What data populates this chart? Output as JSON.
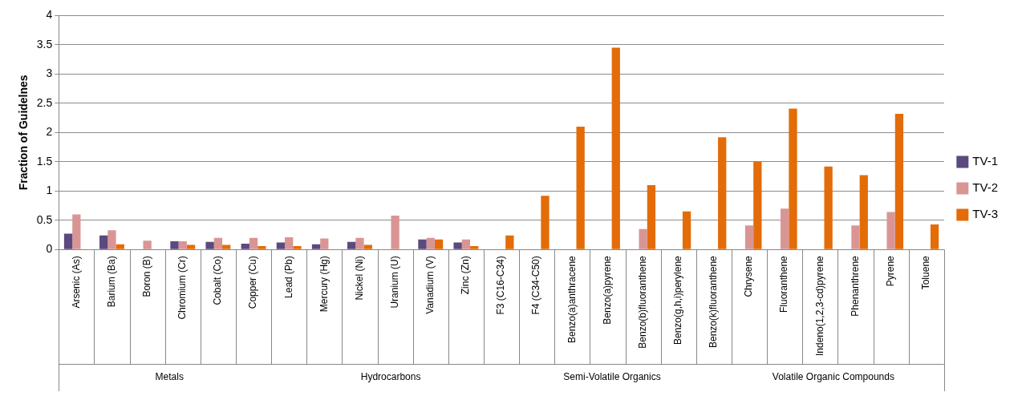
{
  "chart_data": {
    "type": "bar",
    "ylabel": "Fraction of Guidelnes",
    "categories": [
      "Arsenic (As)",
      "Barium (Ba)",
      "Boron (B)",
      "Chromium (Cr)",
      "Cobalt (Co)",
      "Copper (Cu)",
      "Lead (Pb)",
      "Mercury (Hg)",
      "Nickel (Ni)",
      "Uranium (U)",
      "Vanadium (V)",
      "Zinc (Zn)",
      "F3 (C16-C34)",
      "F4 (C34-C50)",
      "Benzo(a)anthracene",
      "Benzo(a)pyrene",
      "Benzo(b)fluoranthene",
      "Benzo(g,h,i)perylene",
      "Benzo(k)fluoranthene",
      "Chrysene",
      "Fluoranthene",
      "Indeno(1,2,3-cd)pyrene",
      "Phenanthrene",
      "Pyrene",
      "Toluene"
    ],
    "series": [
      {
        "name": "TV-1",
        "color": "#5b4a7e",
        "values": [
          0.27,
          0.24,
          null,
          0.14,
          0.13,
          0.1,
          0.12,
          0.09,
          0.13,
          null,
          0.17,
          0.12,
          null,
          null,
          null,
          null,
          null,
          null,
          null,
          null,
          null,
          null,
          null,
          null,
          null
        ]
      },
      {
        "name": "TV-2",
        "color": "#d99594",
        "values": [
          0.6,
          0.33,
          0.15,
          0.14,
          0.2,
          0.2,
          0.21,
          0.19,
          0.2,
          0.58,
          0.2,
          0.17,
          null,
          null,
          null,
          null,
          0.35,
          null,
          null,
          0.41,
          0.7,
          null,
          0.41,
          0.64,
          null
        ]
      },
      {
        "name": "TV-3",
        "color": "#e36c09",
        "values": [
          null,
          0.09,
          null,
          0.08,
          0.08,
          0.06,
          0.06,
          null,
          0.08,
          null,
          0.17,
          0.06,
          0.24,
          0.92,
          2.1,
          3.45,
          1.1,
          0.65,
          1.92,
          1.5,
          2.41,
          1.42,
          1.27,
          2.32,
          0.43
        ]
      }
    ],
    "ylim": [
      0,
      4
    ],
    "yticks": [
      0,
      0.5,
      1,
      1.5,
      2,
      2.5,
      3,
      3.5,
      4
    ],
    "grid": "y",
    "legend": "right",
    "annotations": [
      "Metals",
      "Hydrocarbons",
      "Semi-Volatile Organics",
      "Volatile Organic Compounds"
    ]
  }
}
